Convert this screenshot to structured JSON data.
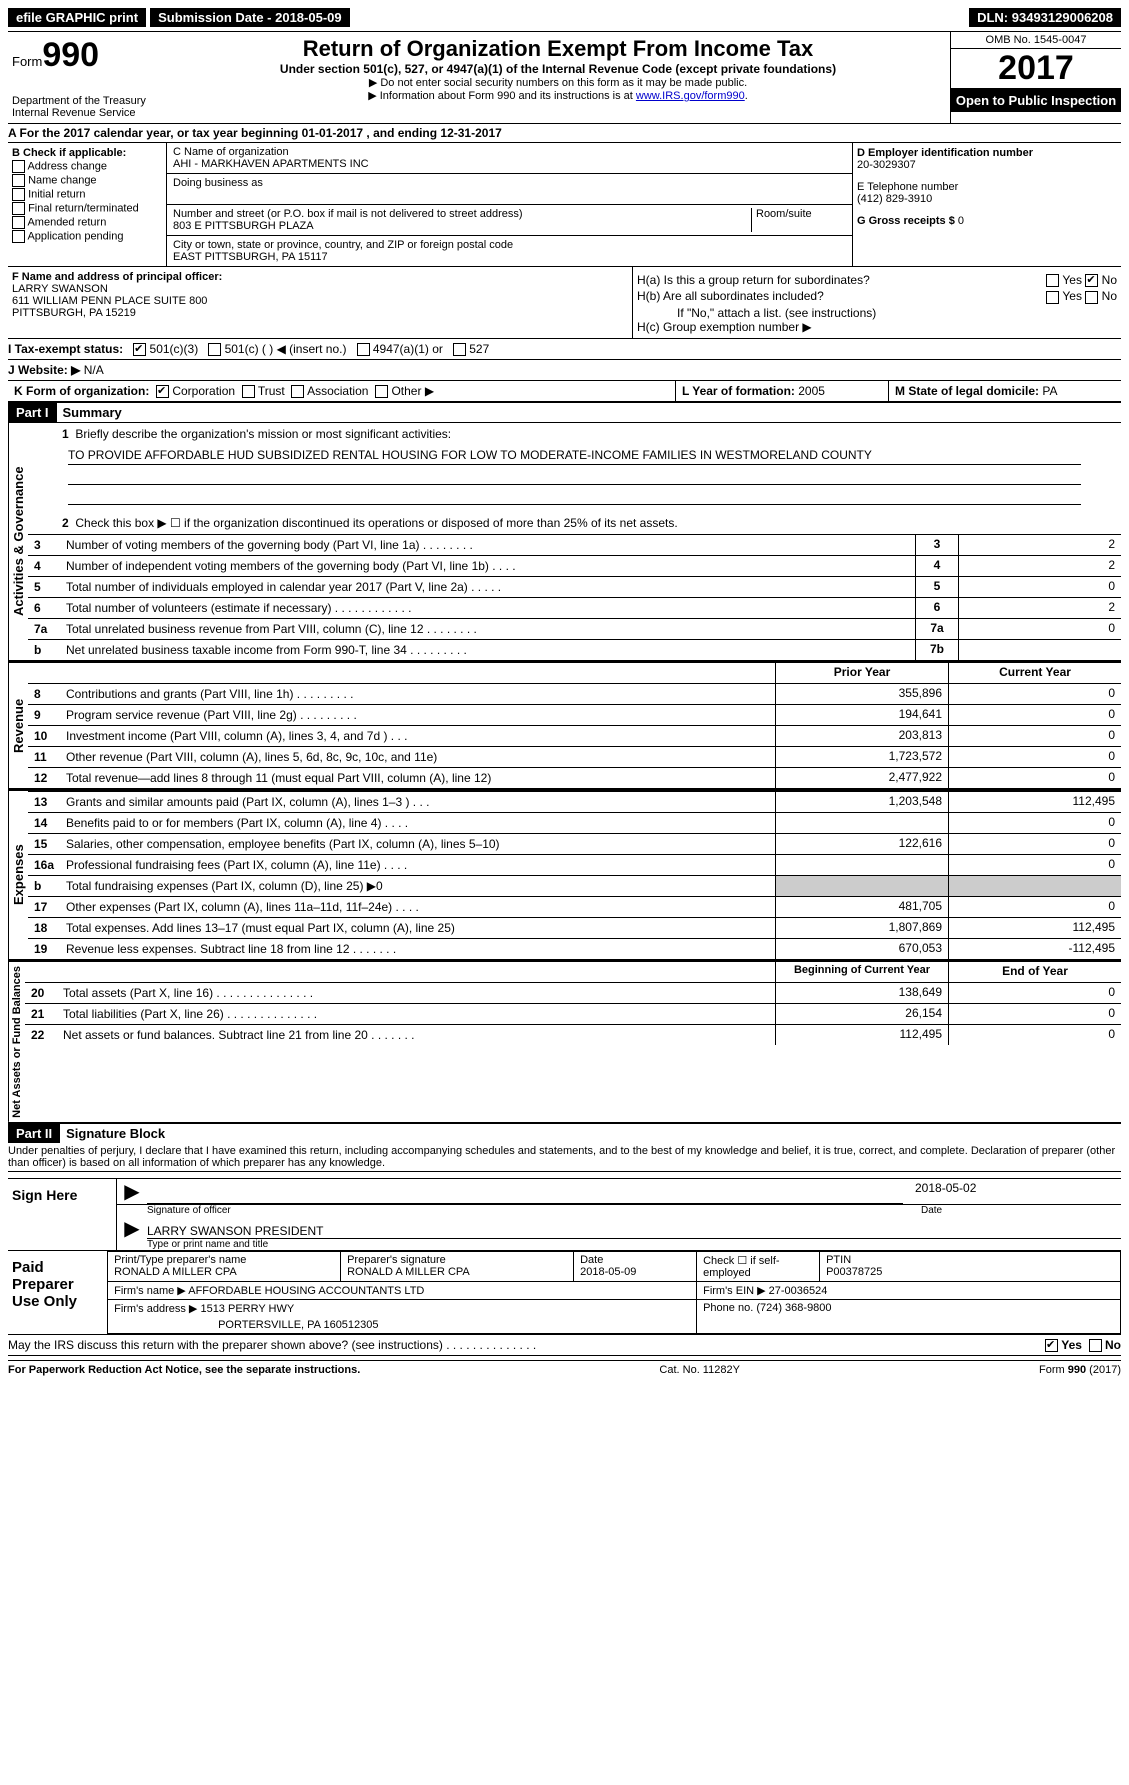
{
  "topbar": {
    "efile": "efile GRAPHIC print",
    "subdate_label": "Submission Date - ",
    "subdate": "2018-05-09",
    "dln_label": "DLN: ",
    "dln": "93493129006208"
  },
  "header": {
    "form_word": "Form",
    "form_num": "990",
    "dept1": "Department of the Treasury",
    "dept2": "Internal Revenue Service",
    "title": "Return of Organization Exempt From Income Tax",
    "sub": "Under section 501(c), 527, or 4947(a)(1) of the Internal Revenue Code (except private foundations)",
    "note1": "▶ Do not enter social security numbers on this form as it may be made public.",
    "note2_pre": "▶ Information about Form 990 and its instructions is at ",
    "note2_link": "www.IRS.gov/form990",
    "omb": "OMB No. 1545-0047",
    "year": "2017",
    "open": "Open to Public Inspection"
  },
  "A": {
    "text_pre": "A  For the 2017 calendar year, or tax year beginning ",
    "begin": "01-01-2017",
    "mid": "   , and ending ",
    "end": "12-31-2017"
  },
  "B": {
    "label": "B Check if applicable:",
    "opts": [
      "Address change",
      "Name change",
      "Initial return",
      "Final return/terminated",
      "Amended return",
      "Application pending"
    ]
  },
  "C": {
    "name_label": "C Name of organization",
    "name": "AHI - MARKHAVEN APARTMENTS INC",
    "dba_label": "Doing business as",
    "dba": "",
    "street_label": "Number and street (or P.O. box if mail is not delivered to street address)",
    "street": "803 E PITTSBURGH PLAZA",
    "room_label": "Room/suite",
    "city_label": "City or town, state or province, country, and ZIP or foreign postal code",
    "city": "EAST PITTSBURGH, PA  15117"
  },
  "D": {
    "ein_label": "D Employer identification number",
    "ein": "20-3029307",
    "tel_label": "E Telephone number",
    "tel": "(412) 829-3910",
    "gross_label": "G Gross receipts $ ",
    "gross": "0"
  },
  "F": {
    "label": "F  Name and address of principal officer:",
    "name": "LARRY SWANSON",
    "addr1": "611 WILLIAM PENN PLACE SUITE 800",
    "addr2": "PITTSBURGH, PA  15219"
  },
  "H": {
    "a": "H(a)  Is this a group return for subordinates?",
    "b": "H(b)  Are all subordinates included?",
    "bno": "If \"No,\" attach a list. (see instructions)",
    "c": "H(c)  Group exemption number ▶",
    "yes": "Yes",
    "no": "No"
  },
  "I": {
    "label": "I  Tax-exempt status:",
    "o1": "501(c)(3)",
    "o2": "501(c) (  ) ◀ (insert no.)",
    "o3": "4947(a)(1) or",
    "o4": "527"
  },
  "J": {
    "label": "J  Website: ▶",
    "val": " N/A"
  },
  "K": {
    "label": "K Form of organization:",
    "o1": "Corporation",
    "o2": "Trust",
    "o3": "Association",
    "o4": "Other ▶"
  },
  "L": {
    "label": "L Year of formation: ",
    "val": "2005"
  },
  "M": {
    "label": "M State of legal domicile: ",
    "val": "PA"
  },
  "part1": {
    "hdr": "Part I",
    "title": "Summary"
  },
  "gov": {
    "vlabel": "Activities & Governance",
    "l1": "Briefly describe the organization's mission or most significant activities:",
    "mission": "TO PROVIDE AFFORDABLE HUD SUBSIDIZED RENTAL HOUSING FOR LOW TO MODERATE-INCOME FAMILIES IN WESTMORELAND COUNTY",
    "l2": "Check this box ▶ ☐  if the organization discontinued its operations or disposed of more than 25% of its net assets.",
    "rows": [
      {
        "n": "3",
        "t": "Number of voting members of the governing body (Part VI, line 1a)   .   .   .   .   .   .   .   .",
        "c": "3",
        "v": "2"
      },
      {
        "n": "4",
        "t": "Number of independent voting members of the governing body (Part VI, line 1b)    .    .    .    .",
        "c": "4",
        "v": "2"
      },
      {
        "n": "5",
        "t": "Total number of individuals employed in calendar year 2017 (Part V, line 2a)    .    .    .    .    .",
        "c": "5",
        "v": "0"
      },
      {
        "n": "6",
        "t": "Total number of volunteers (estimate if necessary)   .   .   .   .   .   .   .   .   .   .   .   .",
        "c": "6",
        "v": "2"
      },
      {
        "n": "7a",
        "t": "Total unrelated business revenue from Part VIII, column (C), line 12   .   .   .   .   .   .   .   .",
        "c": "7a",
        "v": "0"
      },
      {
        "n": "b",
        "t": "Net unrelated business taxable income from Form 990-T, line 34   .   .   .   .   .   .   .   .   .",
        "c": "7b",
        "v": ""
      }
    ]
  },
  "colhdr": {
    "py": "Prior Year",
    "cy": "Current Year",
    "bcy": "Beginning of Current Year",
    "eoy": "End of Year"
  },
  "rev": {
    "vlabel": "Revenue",
    "rows": [
      {
        "n": "8",
        "t": "Contributions and grants (Part VIII, line 1h)    .    .    .    .    .    .    .    .    .",
        "py": "355,896",
        "cy": "0"
      },
      {
        "n": "9",
        "t": "Program service revenue (Part VIII, line 2g)    .    .    .    .    .    .    .    .    .",
        "py": "194,641",
        "cy": "0"
      },
      {
        "n": "10",
        "t": "Investment income (Part VIII, column (A), lines 3, 4, and 7d )    .    .    .",
        "py": "203,813",
        "cy": "0"
      },
      {
        "n": "11",
        "t": "Other revenue (Part VIII, column (A), lines 5, 6d, 8c, 9c, 10c, and 11e)",
        "py": "1,723,572",
        "cy": "0"
      },
      {
        "n": "12",
        "t": "Total revenue—add lines 8 through 11 (must equal Part VIII, column (A), line 12)",
        "py": "2,477,922",
        "cy": "0"
      }
    ]
  },
  "exp": {
    "vlabel": "Expenses",
    "rows": [
      {
        "n": "13",
        "t": "Grants and similar amounts paid (Part IX, column (A), lines 1–3 )    .    .    .",
        "py": "1,203,548",
        "cy": "112,495"
      },
      {
        "n": "14",
        "t": "Benefits paid to or for members (Part IX, column (A), line 4)    .    .    .    .",
        "py": "",
        "cy": "0"
      },
      {
        "n": "15",
        "t": "Salaries, other compensation, employee benefits (Part IX, column (A), lines 5–10)",
        "py": "122,616",
        "cy": "0"
      },
      {
        "n": "16a",
        "t": "Professional fundraising fees (Part IX, column (A), line 11e)    .    .    .    .",
        "py": "",
        "cy": "0"
      },
      {
        "n": "b",
        "t": "Total fundraising expenses (Part IX, column (D), line 25) ▶0",
        "py": "grey",
        "cy": "grey"
      },
      {
        "n": "17",
        "t": "Other expenses (Part IX, column (A), lines 11a–11d, 11f–24e)    .    .    .    .",
        "py": "481,705",
        "cy": "0"
      },
      {
        "n": "18",
        "t": "Total expenses. Add lines 13–17 (must equal Part IX, column (A), line 25)",
        "py": "1,807,869",
        "cy": "112,495"
      },
      {
        "n": "19",
        "t": "Revenue less expenses. Subtract line 18 from line 12   .   .   .   .   .   .   .",
        "py": "670,053",
        "cy": "-112,495"
      }
    ]
  },
  "net": {
    "vlabel": "Net Assets or Fund Balances",
    "rows": [
      {
        "n": "20",
        "t": "Total assets (Part X, line 16)  .   .   .   .   .   .   .   .   .   .   .   .   .   .   .",
        "py": "138,649",
        "cy": "0"
      },
      {
        "n": "21",
        "t": "Total liabilities (Part X, line 26)  .   .   .   .   .   .   .   .   .   .   .   .   .   .",
        "py": "26,154",
        "cy": "0"
      },
      {
        "n": "22",
        "t": "Net assets or fund balances. Subtract line 21 from line 20 .   .   .   .   .   .   .",
        "py": "112,495",
        "cy": "0"
      }
    ]
  },
  "part2": {
    "hdr": "Part II",
    "title": "Signature Block"
  },
  "perjury": "Under penalties of perjury, I declare that I have examined this return, including accompanying schedules and statements, and to the best of my knowledge and belief, it is true, correct, and complete. Declaration of preparer (other than officer) is based on all information of which preparer has any knowledge.",
  "sign": {
    "here": "Sign Here",
    "sig_label": "Signature of officer",
    "date": "2018-05-02",
    "date_label": "Date",
    "name": "LARRY SWANSON  PRESIDENT",
    "name_label": "Type or print name and title"
  },
  "prep": {
    "left": "Paid Preparer Use Only",
    "r1c1l": "Print/Type preparer's name",
    "r1c1": "RONALD A MILLER CPA",
    "r1c2l": "Preparer's signature",
    "r1c2": "RONALD A MILLER CPA",
    "r1c3l": "Date",
    "r1c3": "2018-05-09",
    "r1c4l": "Check ☐ if self-employed",
    "r1c5l": "PTIN",
    "r1c5": "P00378725",
    "r2l": "Firm's name      ▶ ",
    "r2": "AFFORDABLE HOUSING ACCOUNTANTS LTD",
    "r2einl": "Firm's EIN ▶ ",
    "r2ein": "27-0036524",
    "r3l": "Firm's address ▶ ",
    "r3a": "1513 PERRY HWY",
    "r3b": "PORTERSVILLE, PA  160512305",
    "r3phl": "Phone no. ",
    "r3ph": "(724) 368-9800"
  },
  "discuss": {
    "q": "May the IRS discuss this return with the preparer shown above? (see instructions)    .    .    .    .    .    .    .    .    .    .    .    .    .    .",
    "yes": "Yes",
    "no": "No"
  },
  "footer": {
    "l": "For Paperwork Reduction Act Notice, see the separate instructions.",
    "m": "Cat. No. 11282Y",
    "r": "Form 990 (2017)"
  }
}
